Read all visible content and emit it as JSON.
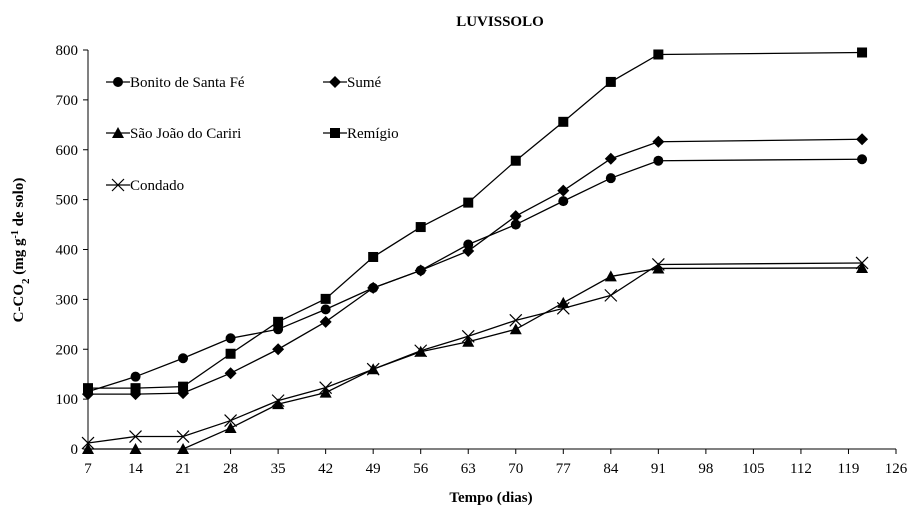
{
  "chart_data": {
    "type": "line",
    "title": "LUVISSOLO",
    "xlabel": "Tempo (dias)",
    "ylabel": {
      "main": "C-CO",
      "sub": "2",
      "mid": " (mg  g",
      "sup": "-1",
      "end": " de solo)"
    },
    "xlim": [
      7,
      126
    ],
    "ylim": [
      0,
      800
    ],
    "xticks": [
      7,
      14,
      21,
      28,
      35,
      42,
      49,
      56,
      63,
      70,
      77,
      84,
      91,
      98,
      105,
      112,
      119,
      126
    ],
    "yticks": [
      0,
      100,
      200,
      300,
      400,
      500,
      600,
      700,
      800
    ],
    "grid": false,
    "legend_position": "top-left",
    "x": [
      7,
      14,
      21,
      28,
      35,
      42,
      49,
      56,
      63,
      70,
      77,
      84,
      91,
      121
    ],
    "series": [
      {
        "name": "Bonito de Santa Fé",
        "marker": "circle",
        "values": [
          115,
          145,
          182,
          222,
          240,
          280,
          323,
          358,
          410,
          450,
          497,
          543,
          578,
          581
        ]
      },
      {
        "name": "Sumé",
        "marker": "diamond",
        "values": [
          110,
          110,
          112,
          152,
          200,
          255,
          323,
          358,
          397,
          467,
          518,
          582,
          616,
          621
        ]
      },
      {
        "name": "São João do Cariri",
        "marker": "triangle",
        "values": [
          0,
          0,
          0,
          42,
          90,
          113,
          160,
          195,
          215,
          240,
          293,
          346,
          362,
          363
        ]
      },
      {
        "name": "Remígio",
        "marker": "square",
        "values": [
          122,
          122,
          125,
          191,
          255,
          301,
          385,
          445,
          494,
          578,
          656,
          736,
          791,
          795
        ]
      },
      {
        "name": "Condado",
        "marker": "x",
        "values": [
          12,
          25,
          25,
          57,
          97,
          123,
          160,
          197,
          226,
          258,
          282,
          308,
          370,
          373
        ]
      }
    ]
  }
}
